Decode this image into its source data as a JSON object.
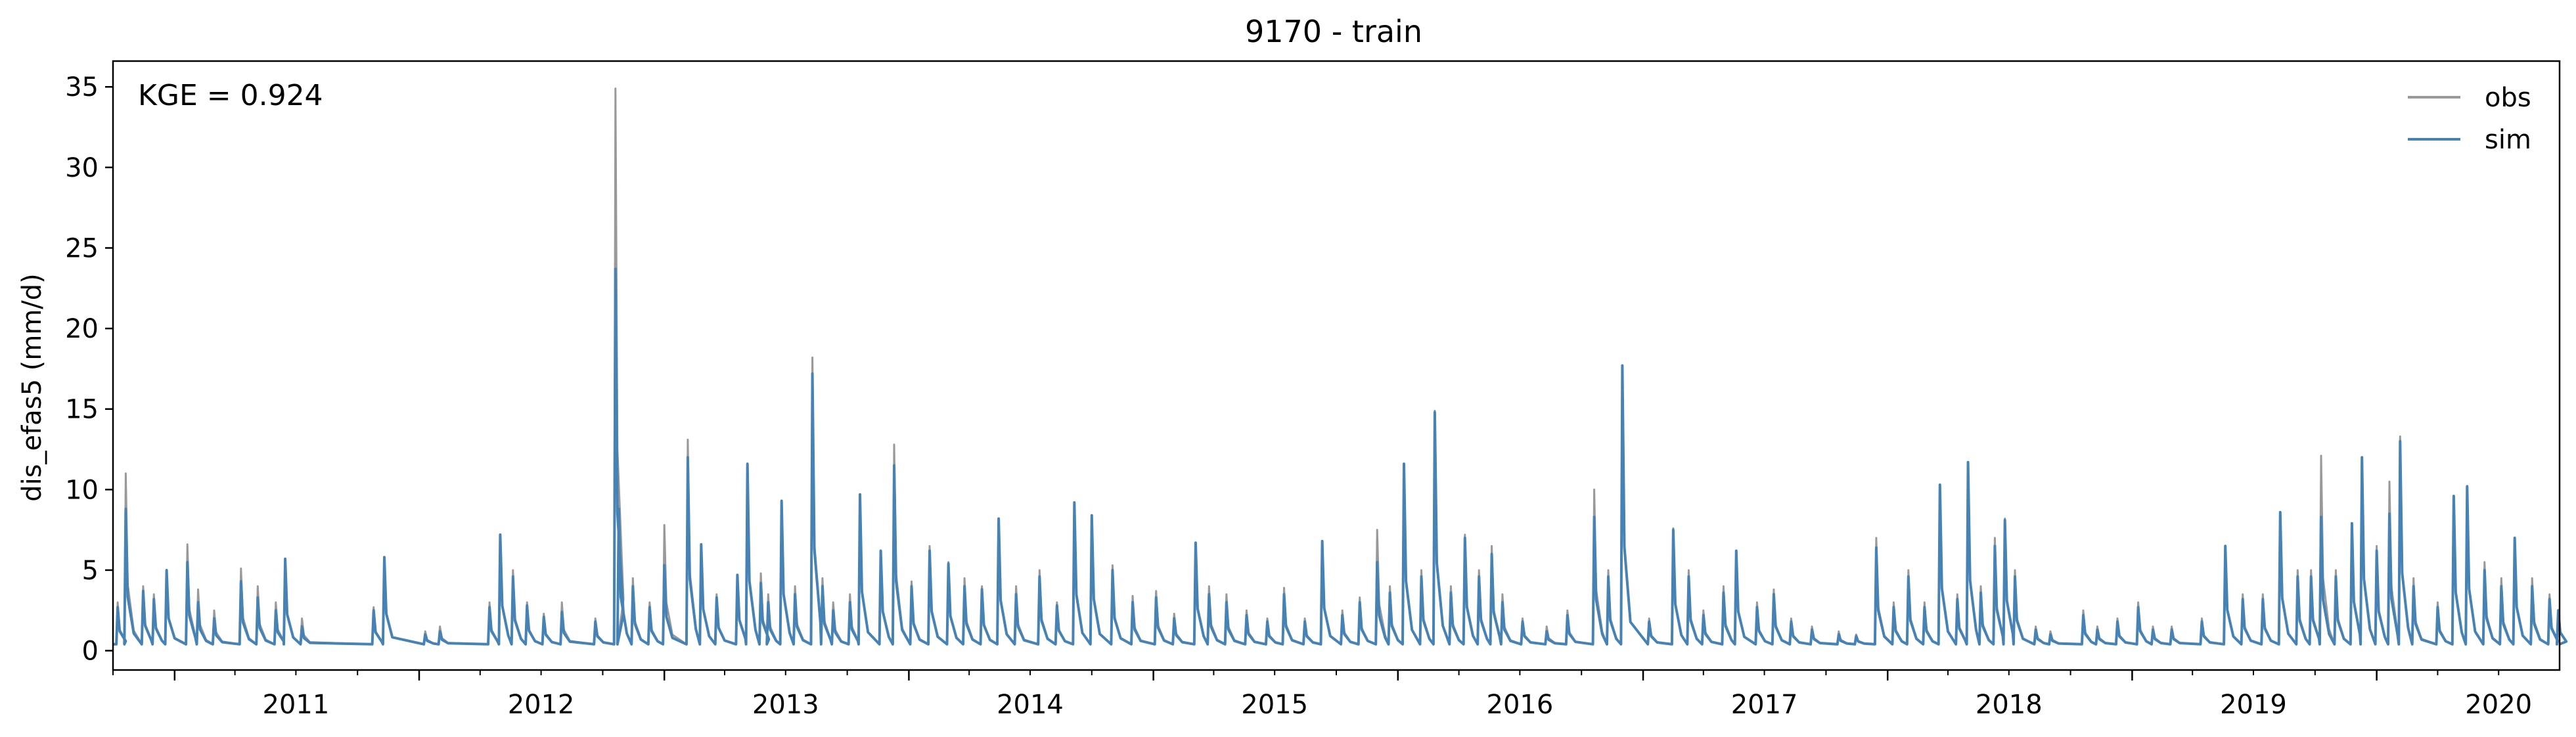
{
  "chart_data": {
    "type": "line",
    "title": "9170 - train",
    "xlabel": "",
    "ylabel": "dis_efas5 (mm/d)",
    "annotation": "KGE = 0.924",
    "xlim": [
      "2010-10-01",
      "2020-09-30"
    ],
    "ylim": [
      -1.2,
      36.6
    ],
    "x_ticks": [
      "2011",
      "2012",
      "2013",
      "2014",
      "2015",
      "2016",
      "2017",
      "2018",
      "2019",
      "2020"
    ],
    "y_ticks": [
      0,
      5,
      10,
      15,
      20,
      25,
      30,
      35
    ],
    "grid": false,
    "legend": {
      "position": "top-right",
      "entries": [
        "obs",
        "sim"
      ]
    },
    "colors": {
      "obs": "#999999",
      "sim": "#4682b4"
    },
    "baseflow": 0.4,
    "series": [
      {
        "name": "obs",
        "peaks": [
          [
            "2010-10-08",
            3.0
          ],
          [
            "2010-10-20",
            11.0
          ],
          [
            "2010-11-15",
            4.0
          ],
          [
            "2010-12-01",
            3.5
          ],
          [
            "2010-12-20",
            5.0
          ],
          [
            "2011-01-20",
            6.6
          ],
          [
            "2011-02-05",
            3.8
          ],
          [
            "2011-03-01",
            2.5
          ],
          [
            "2011-04-10",
            5.1
          ],
          [
            "2011-05-05",
            4.0
          ],
          [
            "2011-06-01",
            3.0
          ],
          [
            "2011-06-15",
            5.7
          ],
          [
            "2011-07-10",
            2.0
          ],
          [
            "2011-10-25",
            2.7
          ],
          [
            "2011-11-10",
            5.8
          ],
          [
            "2012-01-10",
            1.2
          ],
          [
            "2012-02-01",
            1.5
          ],
          [
            "2012-04-15",
            3.0
          ],
          [
            "2012-05-01",
            7.2
          ],
          [
            "2012-05-20",
            5.0
          ],
          [
            "2012-06-10",
            3.0
          ],
          [
            "2012-07-05",
            2.3
          ],
          [
            "2012-08-01",
            3.0
          ],
          [
            "2012-09-20",
            2.0
          ],
          [
            "2012-10-20",
            34.9
          ],
          [
            "2012-10-25",
            9.0
          ],
          [
            "2012-11-15",
            4.5
          ],
          [
            "2012-12-10",
            3.0
          ],
          [
            "2013-01-01",
            7.8
          ],
          [
            "2013-02-05",
            13.1
          ],
          [
            "2013-02-25",
            6.5
          ],
          [
            "2013-03-20",
            3.5
          ],
          [
            "2013-04-20",
            4.7
          ],
          [
            "2013-05-05",
            11.6
          ],
          [
            "2013-05-25",
            4.8
          ],
          [
            "2013-06-05",
            3.5
          ],
          [
            "2013-06-25",
            9.3
          ],
          [
            "2013-07-15",
            4.0
          ],
          [
            "2013-08-10",
            18.2
          ],
          [
            "2013-08-25",
            4.5
          ],
          [
            "2013-09-10",
            3.0
          ],
          [
            "2013-10-05",
            3.5
          ],
          [
            "2013-10-20",
            9.7
          ],
          [
            "2013-11-20",
            6.2
          ],
          [
            "2013-12-10",
            12.8
          ],
          [
            "2014-01-05",
            4.3
          ],
          [
            "2014-02-01",
            6.5
          ],
          [
            "2014-03-01",
            5.5
          ],
          [
            "2014-03-25",
            4.5
          ],
          [
            "2014-04-20",
            4.0
          ],
          [
            "2014-05-15",
            8.2
          ],
          [
            "2014-06-10",
            4.0
          ],
          [
            "2014-07-15",
            5.0
          ],
          [
            "2014-08-10",
            3.0
          ],
          [
            "2014-09-05",
            9.2
          ],
          [
            "2014-10-01",
            8.4
          ],
          [
            "2014-11-01",
            5.3
          ],
          [
            "2014-12-01",
            3.4
          ],
          [
            "2015-01-05",
            3.7
          ],
          [
            "2015-02-01",
            2.3
          ],
          [
            "2015-03-05",
            6.7
          ],
          [
            "2015-03-25",
            4.0
          ],
          [
            "2015-04-20",
            3.5
          ],
          [
            "2015-05-20",
            2.5
          ],
          [
            "2015-06-20",
            2.0
          ],
          [
            "2015-07-15",
            3.9
          ],
          [
            "2015-08-15",
            2.0
          ],
          [
            "2015-09-10",
            6.8
          ],
          [
            "2015-10-10",
            2.5
          ],
          [
            "2015-11-05",
            3.3
          ],
          [
            "2015-12-01",
            7.5
          ],
          [
            "2015-12-20",
            4.0
          ],
          [
            "2016-01-10",
            11.6
          ],
          [
            "2016-02-05",
            5.0
          ],
          [
            "2016-02-25",
            14.9
          ],
          [
            "2016-03-20",
            4.0
          ],
          [
            "2016-04-10",
            7.2
          ],
          [
            "2016-05-01",
            5.0
          ],
          [
            "2016-05-20",
            6.5
          ],
          [
            "2016-06-05",
            3.5
          ],
          [
            "2016-07-05",
            2.0
          ],
          [
            "2016-08-10",
            1.5
          ],
          [
            "2016-09-10",
            2.5
          ],
          [
            "2016-10-20",
            10.0
          ],
          [
            "2016-11-10",
            5.0
          ],
          [
            "2016-12-01",
            17.7
          ],
          [
            "2017-01-10",
            2.0
          ],
          [
            "2017-02-15",
            7.6
          ],
          [
            "2017-03-10",
            5.0
          ],
          [
            "2017-04-01",
            2.5
          ],
          [
            "2017-05-01",
            4.0
          ],
          [
            "2017-05-20",
            6.2
          ],
          [
            "2017-06-20",
            3.0
          ],
          [
            "2017-07-15",
            3.8
          ],
          [
            "2017-08-10",
            2.0
          ],
          [
            "2017-09-10",
            1.5
          ],
          [
            "2017-10-20",
            1.2
          ],
          [
            "2017-11-15",
            1.0
          ],
          [
            "2017-12-15",
            7.0
          ],
          [
            "2018-01-10",
            3.0
          ],
          [
            "2018-02-01",
            5.0
          ],
          [
            "2018-02-25",
            3.0
          ],
          [
            "2018-03-20",
            10.3
          ],
          [
            "2018-04-15",
            3.5
          ],
          [
            "2018-05-01",
            11.7
          ],
          [
            "2018-05-20",
            4.0
          ],
          [
            "2018-06-10",
            7.0
          ],
          [
            "2018-06-25",
            8.2
          ],
          [
            "2018-07-10",
            5.0
          ],
          [
            "2018-08-10",
            1.5
          ],
          [
            "2018-09-01",
            1.2
          ],
          [
            "2018-10-20",
            2.5
          ],
          [
            "2018-11-10",
            1.5
          ],
          [
            "2018-12-10",
            2.0
          ],
          [
            "2019-01-10",
            3.0
          ],
          [
            "2019-02-01",
            1.5
          ],
          [
            "2019-03-01",
            1.5
          ],
          [
            "2019-04-15",
            2.0
          ],
          [
            "2019-05-20",
            6.5
          ],
          [
            "2019-06-15",
            3.5
          ],
          [
            "2019-07-15",
            3.5
          ],
          [
            "2019-08-10",
            8.6
          ],
          [
            "2019-09-05",
            5.0
          ],
          [
            "2019-09-25",
            5.0
          ],
          [
            "2019-10-10",
            12.1
          ],
          [
            "2019-11-01",
            5.0
          ],
          [
            "2019-11-25",
            7.9
          ],
          [
            "2019-12-10",
            12.0
          ],
          [
            "2020-01-01",
            6.5
          ],
          [
            "2020-01-20",
            10.5
          ],
          [
            "2020-02-05",
            13.3
          ],
          [
            "2020-02-25",
            4.5
          ],
          [
            "2020-04-01",
            3.0
          ],
          [
            "2020-04-25",
            9.6
          ],
          [
            "2020-05-15",
            10.2
          ],
          [
            "2020-06-10",
            5.5
          ],
          [
            "2020-07-05",
            4.5
          ],
          [
            "2020-07-25",
            7.0
          ],
          [
            "2020-08-20",
            4.5
          ],
          [
            "2020-09-15",
            3.5
          ],
          [
            "2020-09-28",
            2.5
          ]
        ]
      },
      {
        "name": "sim",
        "peaks": [
          [
            "2010-10-08",
            2.7
          ],
          [
            "2010-10-20",
            8.8
          ],
          [
            "2010-11-15",
            3.7
          ],
          [
            "2010-12-01",
            3.2
          ],
          [
            "2010-12-20",
            5.0
          ],
          [
            "2011-01-20",
            5.5
          ],
          [
            "2011-02-05",
            3.0
          ],
          [
            "2011-03-01",
            2.0
          ],
          [
            "2011-04-10",
            4.3
          ],
          [
            "2011-05-05",
            3.3
          ],
          [
            "2011-06-01",
            2.5
          ],
          [
            "2011-06-15",
            5.7
          ],
          [
            "2011-07-10",
            1.5
          ],
          [
            "2011-10-25",
            2.5
          ],
          [
            "2011-11-10",
            5.8
          ],
          [
            "2012-01-10",
            1.0
          ],
          [
            "2012-02-01",
            1.2
          ],
          [
            "2012-04-15",
            2.7
          ],
          [
            "2012-05-01",
            7.2
          ],
          [
            "2012-05-20",
            4.6
          ],
          [
            "2012-06-10",
            2.8
          ],
          [
            "2012-07-05",
            2.1
          ],
          [
            "2012-08-01",
            2.4
          ],
          [
            "2012-09-20",
            1.8
          ],
          [
            "2012-10-20",
            23.7
          ],
          [
            "2012-10-25",
            8.8
          ],
          [
            "2012-11-15",
            4.0
          ],
          [
            "2012-12-10",
            2.7
          ],
          [
            "2013-01-01",
            5.3
          ],
          [
            "2013-02-05",
            12.0
          ],
          [
            "2013-02-25",
            6.6
          ],
          [
            "2013-03-20",
            3.3
          ],
          [
            "2013-04-20",
            4.7
          ],
          [
            "2013-05-05",
            11.6
          ],
          [
            "2013-05-25",
            4.2
          ],
          [
            "2013-06-05",
            3.0
          ],
          [
            "2013-06-25",
            9.3
          ],
          [
            "2013-07-15",
            3.5
          ],
          [
            "2013-08-10",
            17.2
          ],
          [
            "2013-08-25",
            4.0
          ],
          [
            "2013-09-10",
            2.5
          ],
          [
            "2013-10-05",
            3.0
          ],
          [
            "2013-10-20",
            9.7
          ],
          [
            "2013-11-20",
            6.2
          ],
          [
            "2013-12-10",
            11.5
          ],
          [
            "2014-01-05",
            4.0
          ],
          [
            "2014-02-01",
            6.2
          ],
          [
            "2014-03-01",
            5.4
          ],
          [
            "2014-03-25",
            4.0
          ],
          [
            "2014-04-20",
            3.8
          ],
          [
            "2014-05-15",
            8.2
          ],
          [
            "2014-06-10",
            3.5
          ],
          [
            "2014-07-15",
            4.6
          ],
          [
            "2014-08-10",
            2.8
          ],
          [
            "2014-09-05",
            9.2
          ],
          [
            "2014-10-01",
            8.4
          ],
          [
            "2014-11-01",
            5.0
          ],
          [
            "2014-12-01",
            3.0
          ],
          [
            "2015-01-05",
            3.3
          ],
          [
            "2015-02-01",
            2.0
          ],
          [
            "2015-03-05",
            6.7
          ],
          [
            "2015-03-25",
            3.5
          ],
          [
            "2015-04-20",
            3.0
          ],
          [
            "2015-05-20",
            2.2
          ],
          [
            "2015-06-20",
            1.8
          ],
          [
            "2015-07-15",
            3.5
          ],
          [
            "2015-08-15",
            1.8
          ],
          [
            "2015-09-10",
            6.8
          ],
          [
            "2015-10-10",
            2.2
          ],
          [
            "2015-11-05",
            3.0
          ],
          [
            "2015-12-01",
            5.5
          ],
          [
            "2015-12-20",
            3.6
          ],
          [
            "2016-01-10",
            11.6
          ],
          [
            "2016-02-05",
            4.6
          ],
          [
            "2016-02-25",
            14.8
          ],
          [
            "2016-03-20",
            3.6
          ],
          [
            "2016-04-10",
            7.0
          ],
          [
            "2016-05-01",
            4.6
          ],
          [
            "2016-05-20",
            6.0
          ],
          [
            "2016-06-05",
            3.0
          ],
          [
            "2016-07-05",
            1.8
          ],
          [
            "2016-08-10",
            1.2
          ],
          [
            "2016-09-10",
            2.2
          ],
          [
            "2016-10-20",
            8.3
          ],
          [
            "2016-11-10",
            4.6
          ],
          [
            "2016-12-01",
            17.7
          ],
          [
            "2017-01-10",
            1.8
          ],
          [
            "2017-02-15",
            7.5
          ],
          [
            "2017-03-10",
            4.6
          ],
          [
            "2017-04-01",
            2.2
          ],
          [
            "2017-05-01",
            3.6
          ],
          [
            "2017-05-20",
            6.2
          ],
          [
            "2017-06-20",
            2.7
          ],
          [
            "2017-07-15",
            3.5
          ],
          [
            "2017-08-10",
            1.8
          ],
          [
            "2017-09-10",
            1.3
          ],
          [
            "2017-10-20",
            1.0
          ],
          [
            "2017-11-15",
            0.9
          ],
          [
            "2017-12-15",
            6.4
          ],
          [
            "2018-01-10",
            2.7
          ],
          [
            "2018-02-01",
            4.6
          ],
          [
            "2018-02-25",
            2.7
          ],
          [
            "2018-03-20",
            10.3
          ],
          [
            "2018-04-15",
            3.2
          ],
          [
            "2018-05-01",
            11.7
          ],
          [
            "2018-05-20",
            3.6
          ],
          [
            "2018-06-10",
            6.5
          ],
          [
            "2018-06-25",
            8.1
          ],
          [
            "2018-07-10",
            4.6
          ],
          [
            "2018-08-10",
            1.3
          ],
          [
            "2018-09-01",
            1.0
          ],
          [
            "2018-10-20",
            2.2
          ],
          [
            "2018-11-10",
            1.3
          ],
          [
            "2018-12-10",
            1.8
          ],
          [
            "2019-01-10",
            2.7
          ],
          [
            "2019-02-01",
            1.3
          ],
          [
            "2019-03-01",
            1.3
          ],
          [
            "2019-04-15",
            1.8
          ],
          [
            "2019-05-20",
            6.5
          ],
          [
            "2019-06-15",
            3.2
          ],
          [
            "2019-07-15",
            3.2
          ],
          [
            "2019-08-10",
            8.6
          ],
          [
            "2019-09-05",
            4.6
          ],
          [
            "2019-09-25",
            4.6
          ],
          [
            "2019-10-10",
            8.3
          ],
          [
            "2019-11-01",
            4.6
          ],
          [
            "2019-11-25",
            7.9
          ],
          [
            "2019-12-10",
            12.0
          ],
          [
            "2020-01-01",
            6.2
          ],
          [
            "2020-01-20",
            8.5
          ],
          [
            "2020-02-05",
            13.0
          ],
          [
            "2020-02-25",
            4.0
          ],
          [
            "2020-04-01",
            2.7
          ],
          [
            "2020-04-25",
            9.6
          ],
          [
            "2020-05-15",
            10.2
          ],
          [
            "2020-06-10",
            5.0
          ],
          [
            "2020-07-05",
            4.0
          ],
          [
            "2020-07-25",
            7.0
          ],
          [
            "2020-08-20",
            4.0
          ],
          [
            "2020-09-15",
            3.2
          ],
          [
            "2020-09-28",
            2.5
          ]
        ]
      }
    ]
  }
}
